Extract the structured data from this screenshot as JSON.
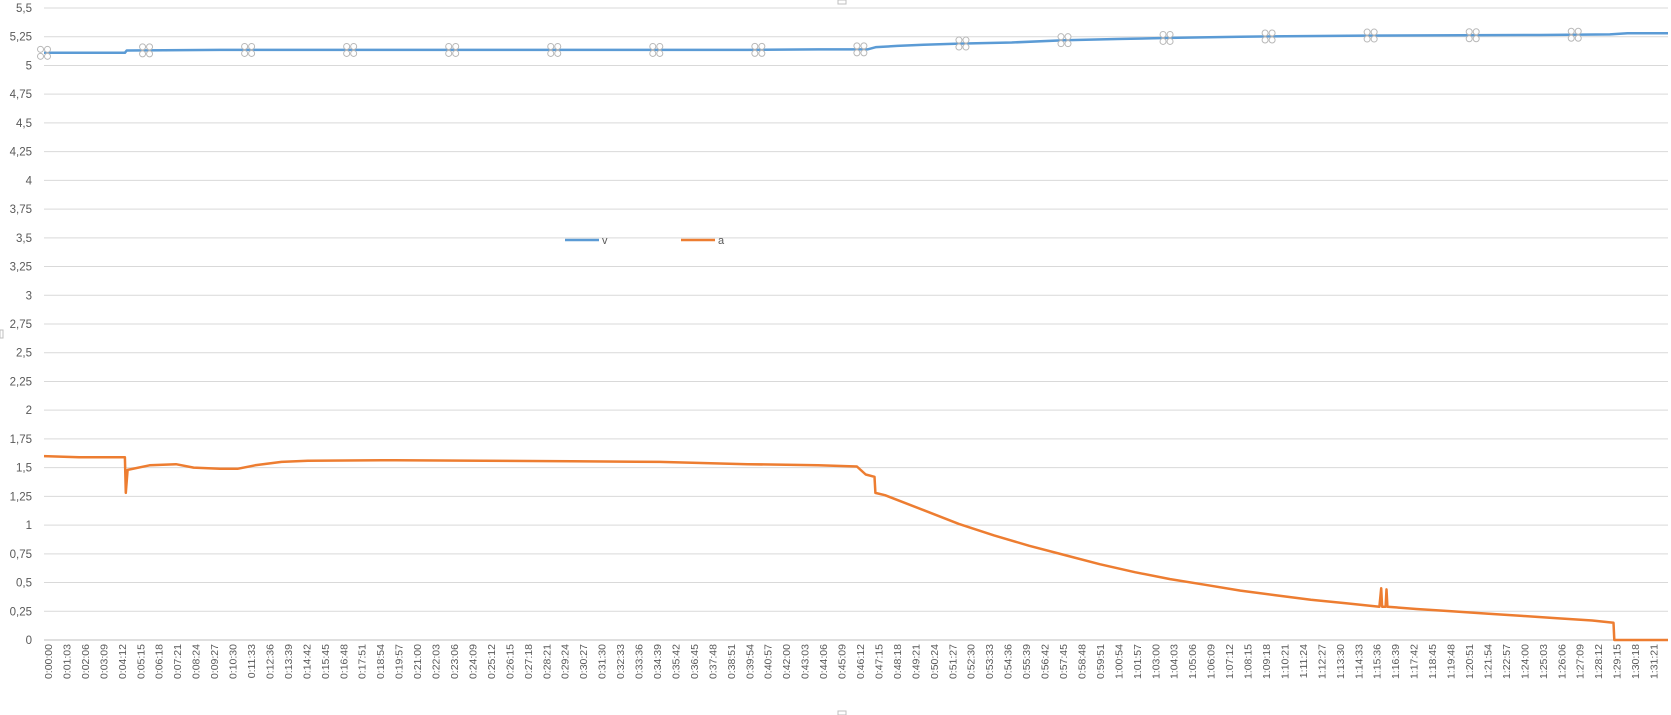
{
  "chart_data": {
    "type": "line",
    "title": "",
    "xlabel": "",
    "ylabel": "",
    "grid": true,
    "legend_position": "center",
    "y_axis": {
      "min": 0,
      "max": 5.5,
      "tick_labels": [
        "0",
        "0,25",
        "0,5",
        "0,75",
        "1",
        "1,25",
        "1,5",
        "1,75",
        "2",
        "2,25",
        "2,5",
        "2,75",
        "3",
        "3,25",
        "3,5",
        "3,75",
        "4",
        "4,25",
        "4,5",
        "4,75",
        "5",
        "5,25",
        "5,5"
      ]
    },
    "x_axis": {
      "tick_labels": [
        "0:00:00",
        "0:01:03",
        "0:02:06",
        "0:03:09",
        "0:04:12",
        "0:05:15",
        "0:06:18",
        "0:07:21",
        "0:08:24",
        "0:09:27",
        "0:10:30",
        "0:11:33",
        "0:12:36",
        "0:13:39",
        "0:14:42",
        "0:15:45",
        "0:16:48",
        "0:17:51",
        "0:18:54",
        "0:19:57",
        "0:21:00",
        "0:22:03",
        "0:23:06",
        "0:24:09",
        "0:25:12",
        "0:26:15",
        "0:27:18",
        "0:28:21",
        "0:29:24",
        "0:30:27",
        "0:31:30",
        "0:32:33",
        "0:33:36",
        "0:34:39",
        "0:35:42",
        "0:36:45",
        "0:37:48",
        "0:38:51",
        "0:39:54",
        "0:40:57",
        "0:42:00",
        "0:43:03",
        "0:44:06",
        "0:45:09",
        "0:46:12",
        "0:47:15",
        "0:48:18",
        "0:49:21",
        "0:50:24",
        "0:51:27",
        "0:52:30",
        "0:53:33",
        "0:54:36",
        "0:55:39",
        "0:56:42",
        "0:57:45",
        "0:58:48",
        "0:59:51",
        "1:00:54",
        "1:01:57",
        "1:03:00",
        "1:04:03",
        "1:05:06",
        "1:06:09",
        "1:07:12",
        "1:08:15",
        "1:09:18",
        "1:10:21",
        "1:11:24",
        "1:12:27",
        "1:13:30",
        "1:14:33",
        "1:15:36",
        "1:16:39",
        "1:17:42",
        "1:18:45",
        "1:19:48",
        "1:20:51",
        "1:21:54",
        "1:22:57",
        "1:24:00",
        "1:25:03",
        "1:26:06",
        "1:27:09",
        "1:28:12",
        "1:29:15",
        "1:30:18",
        "1:31:21"
      ],
      "min_minutes": 0,
      "max_minutes": 92.3
    },
    "series": [
      {
        "name": "v",
        "color": "#5b9bd5",
        "points": [
          [
            0,
            5.11
          ],
          [
            4.6,
            5.11
          ],
          [
            4.7,
            5.13
          ],
          [
            10,
            5.135
          ],
          [
            20,
            5.135
          ],
          [
            30,
            5.135
          ],
          [
            40,
            5.135
          ],
          [
            44,
            5.14
          ],
          [
            46.8,
            5.14
          ],
          [
            47.3,
            5.16
          ],
          [
            48.5,
            5.17
          ],
          [
            50,
            5.18
          ],
          [
            52,
            5.19
          ],
          [
            55,
            5.2
          ],
          [
            58,
            5.22
          ],
          [
            61,
            5.23
          ],
          [
            64,
            5.24
          ],
          [
            68,
            5.25
          ],
          [
            75,
            5.26
          ],
          [
            85,
            5.265
          ],
          [
            89,
            5.27
          ],
          [
            90,
            5.28
          ],
          [
            92.3,
            5.28
          ]
        ]
      },
      {
        "name": "a",
        "color": "#ed7d31",
        "points": [
          [
            0,
            1.6
          ],
          [
            2,
            1.59
          ],
          [
            4.6,
            1.59
          ],
          [
            4.65,
            1.28
          ],
          [
            4.75,
            1.48
          ],
          [
            6,
            1.52
          ],
          [
            7.5,
            1.53
          ],
          [
            8.5,
            1.5
          ],
          [
            10,
            1.49
          ],
          [
            11,
            1.49
          ],
          [
            12,
            1.52
          ],
          [
            13.5,
            1.55
          ],
          [
            15,
            1.56
          ],
          [
            20,
            1.565
          ],
          [
            25,
            1.56
          ],
          [
            30,
            1.555
          ],
          [
            35,
            1.55
          ],
          [
            40,
            1.53
          ],
          [
            44,
            1.52
          ],
          [
            46.2,
            1.51
          ],
          [
            46.7,
            1.44
          ],
          [
            47.2,
            1.42
          ],
          [
            47.25,
            1.28
          ],
          [
            47.8,
            1.26
          ],
          [
            50,
            1.13
          ],
          [
            52,
            1.01
          ],
          [
            54,
            0.91
          ],
          [
            56,
            0.82
          ],
          [
            58,
            0.74
          ],
          [
            60,
            0.66
          ],
          [
            62,
            0.59
          ],
          [
            64,
            0.53
          ],
          [
            66,
            0.48
          ],
          [
            68,
            0.43
          ],
          [
            70,
            0.39
          ],
          [
            72,
            0.35
          ],
          [
            74,
            0.32
          ],
          [
            75.9,
            0.29
          ],
          [
            76.0,
            0.45
          ],
          [
            76.05,
            0.29
          ],
          [
            76.25,
            0.29
          ],
          [
            76.3,
            0.44
          ],
          [
            76.35,
            0.29
          ],
          [
            78,
            0.27
          ],
          [
            80,
            0.25
          ],
          [
            82,
            0.23
          ],
          [
            84,
            0.21
          ],
          [
            86,
            0.19
          ],
          [
            88,
            0.17
          ],
          [
            89.2,
            0.15
          ],
          [
            89.25,
            0.0
          ],
          [
            92.3,
            0.0
          ]
        ]
      }
    ]
  }
}
